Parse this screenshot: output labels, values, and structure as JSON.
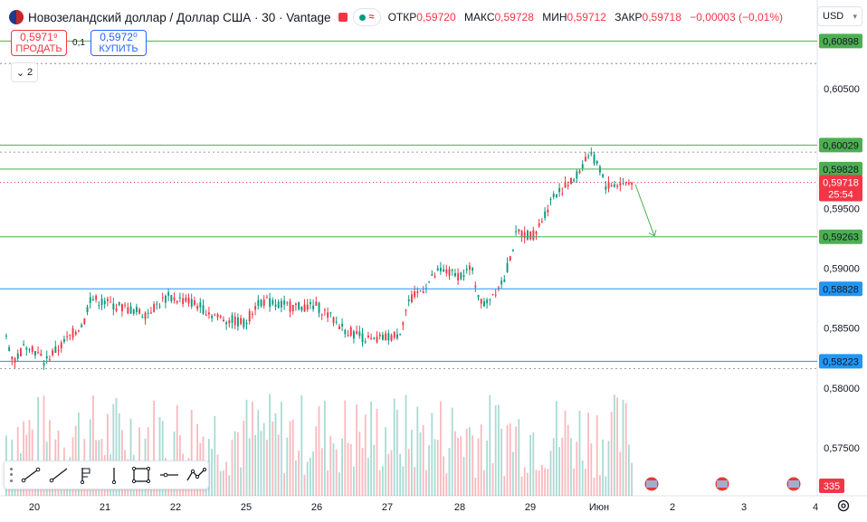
{
  "legend": {
    "title": "Новозеландский доллар / Доллар США · 30 · Vantage",
    "open_label": "ОТКР",
    "open": "0,59720",
    "high_label": "МАКС",
    "high": "0,59728",
    "low_label": "МИН",
    "low": "0,59712",
    "close_label": "ЗАКР",
    "close": "0,59718",
    "change": "−0,00003 (−0,01%)"
  },
  "trade": {
    "sell_price": "0,5971⁹",
    "sell_label": "ПРОДАТЬ",
    "spread": "0,1",
    "buy_price": "0,5972⁰",
    "buy_label": "КУПИТЬ"
  },
  "indicators_count": "2",
  "currency": "USD",
  "price_axis": {
    "ticks": [
      {
        "price": 0.605,
        "label": "0,60500"
      },
      {
        "price": 0.595,
        "label": "0,59500"
      },
      {
        "price": 0.59,
        "label": "0,59000"
      },
      {
        "price": 0.585,
        "label": "0,58500"
      },
      {
        "price": 0.58,
        "label": "0,58000"
      },
      {
        "price": 0.575,
        "label": "0,57500"
      }
    ],
    "levels": [
      {
        "price": 0.60898,
        "label": "0,60898",
        "color": "#4caf50"
      },
      {
        "price": 0.60029,
        "label": "0,60029",
        "color": "#4caf50"
      },
      {
        "price": 0.59828,
        "label": "0,59828",
        "color": "#4caf50"
      },
      {
        "price": 0.59263,
        "label": "0,59263",
        "color": "#4caf50"
      },
      {
        "price": 0.58828,
        "label": "0,58828",
        "color": "#2196f3"
      },
      {
        "price": 0.58223,
        "label": "0,58223",
        "color": "#2196f3"
      }
    ],
    "current_price": "0,59718",
    "countdown": "25:54",
    "volume_label": "335"
  },
  "time_axis": {
    "labels": [
      "20",
      "21",
      "22",
      "25",
      "26",
      "27",
      "28",
      "29",
      "Июн",
      "2",
      "3",
      "4"
    ]
  },
  "colors": {
    "up": "#089981",
    "down": "#f23645",
    "accent": "#2962ff"
  },
  "toolbar": {
    "tools": [
      "trend-line-icon",
      "ray-icon",
      "fib-icon",
      "cursor-icon",
      "rectangle-icon",
      "horizontal-line-icon",
      "path-icon"
    ]
  }
}
